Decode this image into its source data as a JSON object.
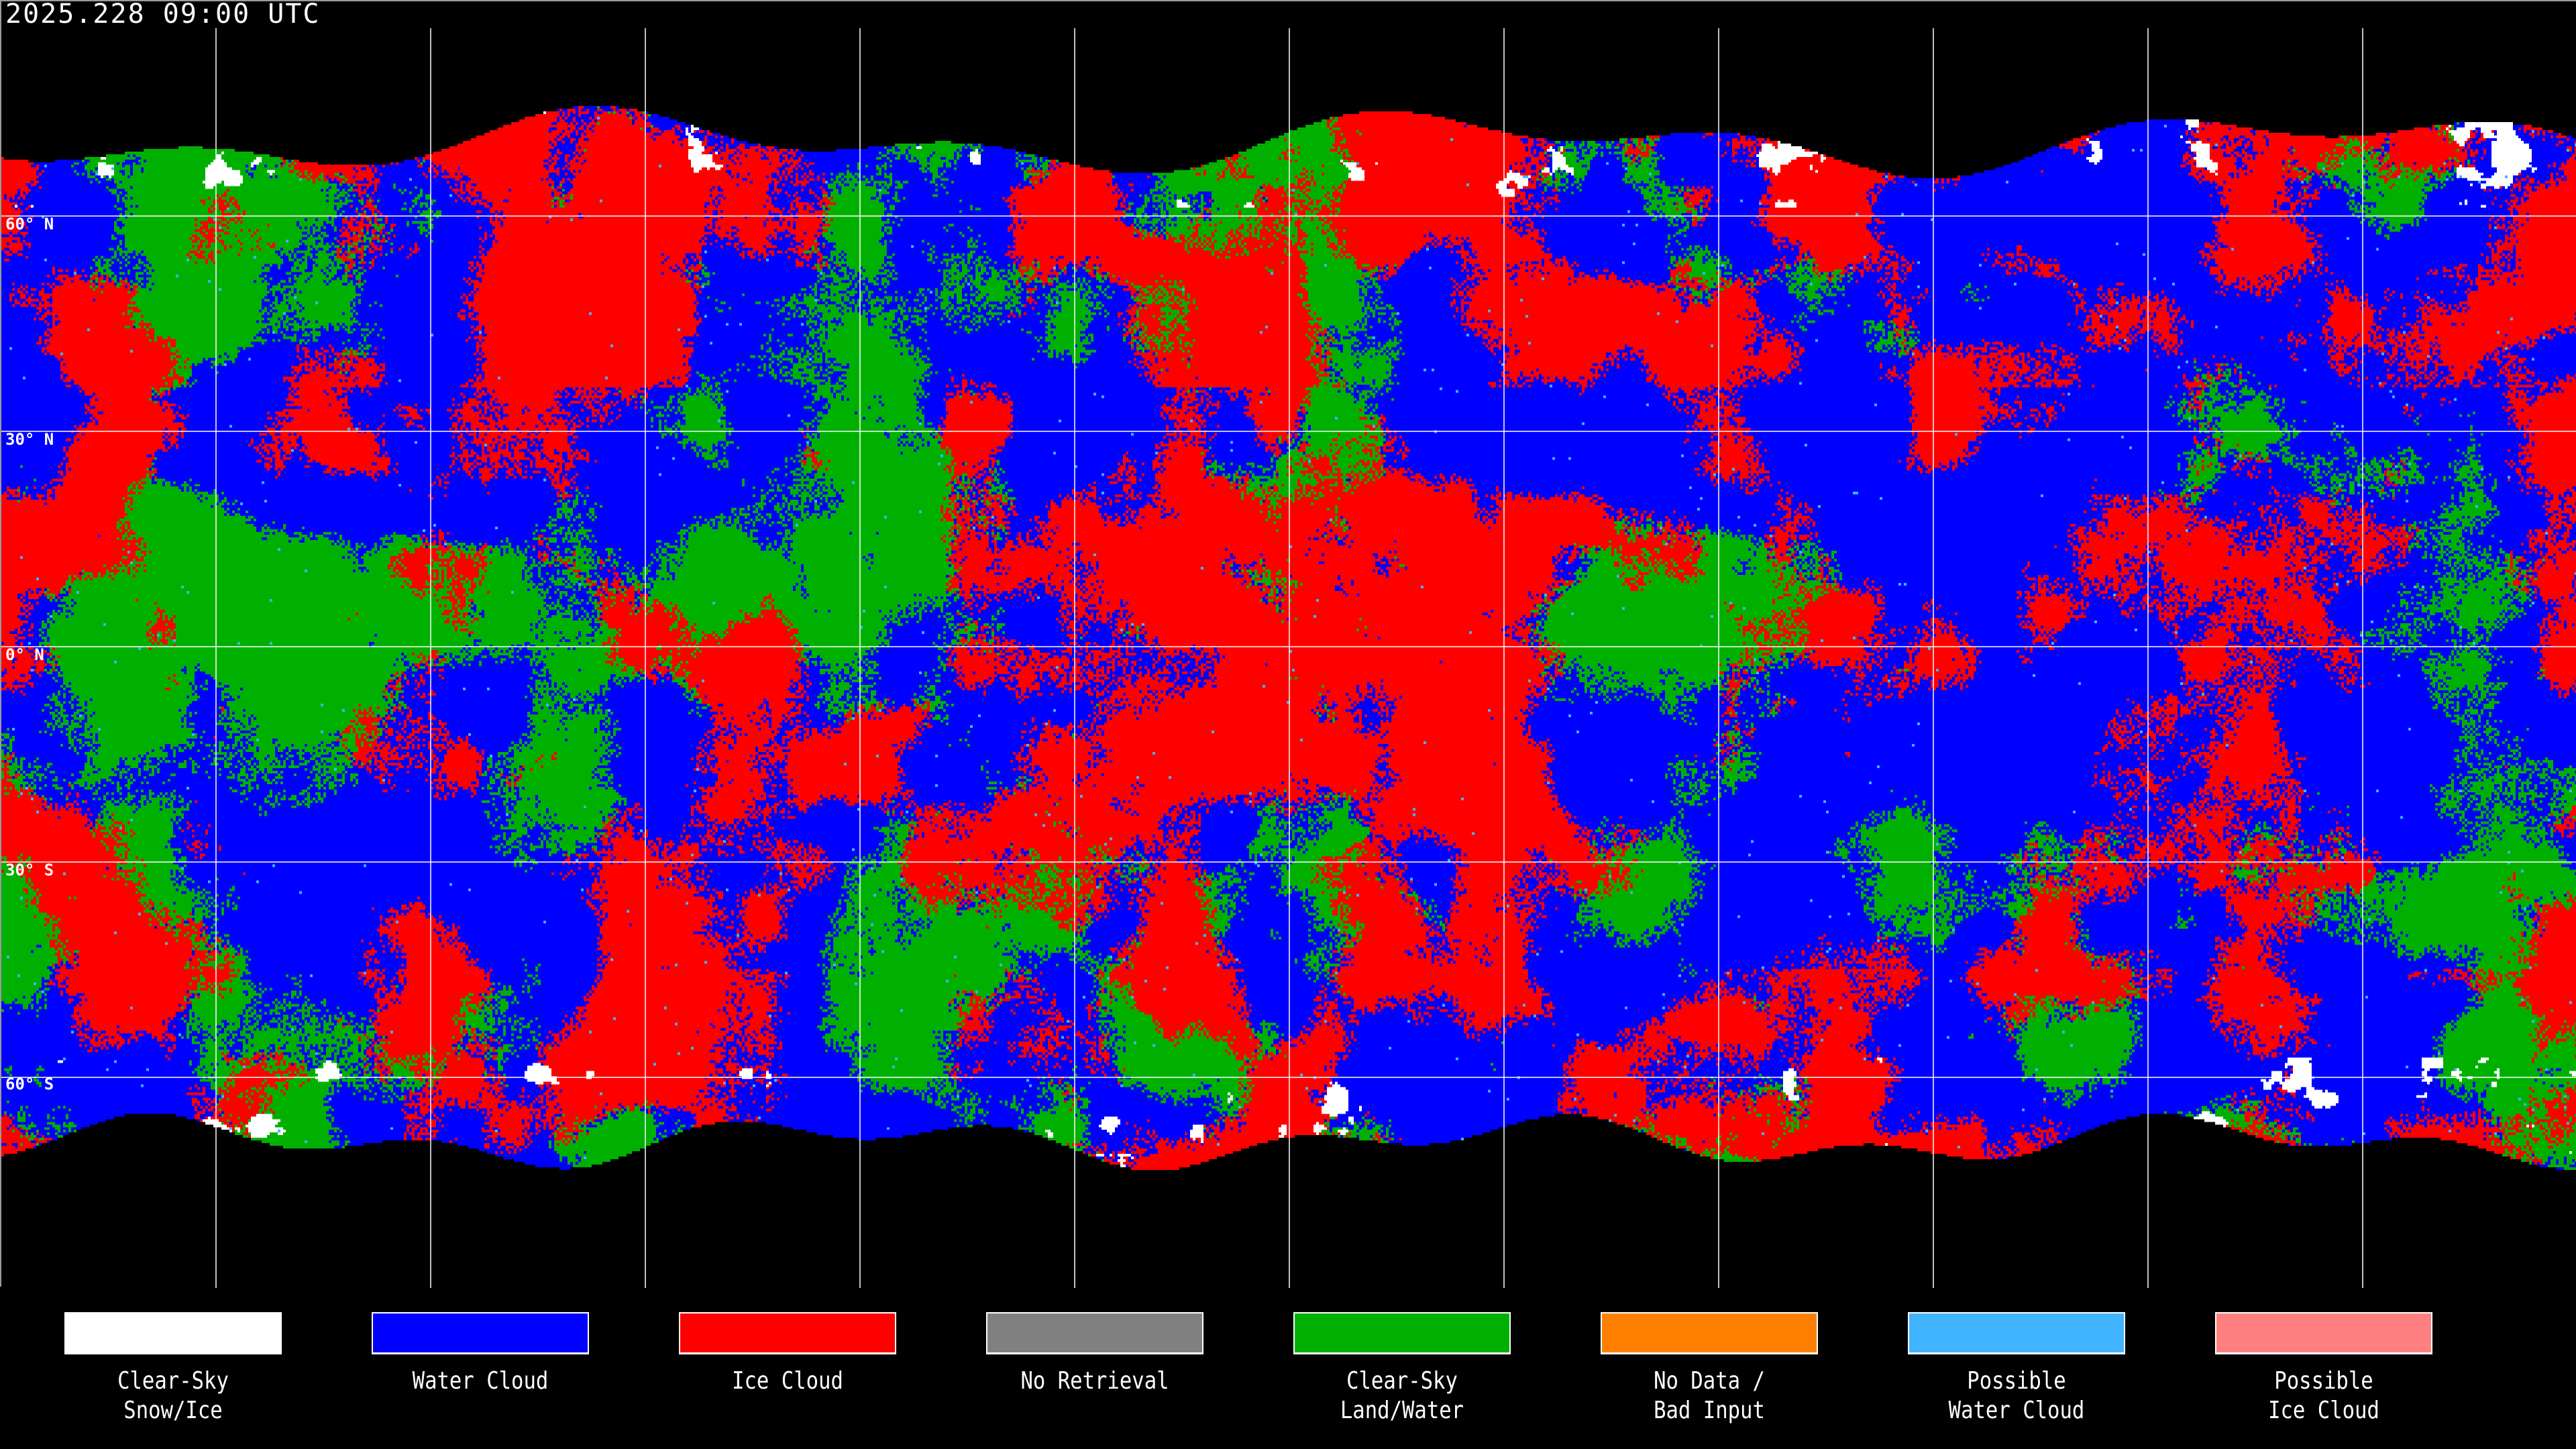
{
  "title": "2025.228 09:00 UTC",
  "latitude_labels": [
    "60° N",
    "30° N",
    "0° N",
    "30° S",
    "60° S"
  ],
  "legend": [
    {
      "line1": "Clear-Sky",
      "line2": "Snow/Ice",
      "color": "#ffffff"
    },
    {
      "line1": "Water Cloud",
      "line2": "",
      "color": "#0000ff"
    },
    {
      "line1": "Ice Cloud",
      "line2": "",
      "color": "#ff0000"
    },
    {
      "line1": "No Retrieval",
      "line2": "",
      "color": "#808080"
    },
    {
      "line1": "Clear-Sky",
      "line2": "Land/Water",
      "color": "#00b000"
    },
    {
      "line1": "No Data /",
      "line2": "Bad Input",
      "color": "#ff8000"
    },
    {
      "line1": "Possible",
      "line2": "Water Cloud",
      "color": "#40b4ff"
    },
    {
      "line1": "Possible",
      "line2": "Ice Cloud",
      "color": "#ff8080"
    }
  ],
  "colors": {
    "background": "#000000",
    "gridlines": "#ffffff",
    "coastlines": "#ffffff"
  }
}
